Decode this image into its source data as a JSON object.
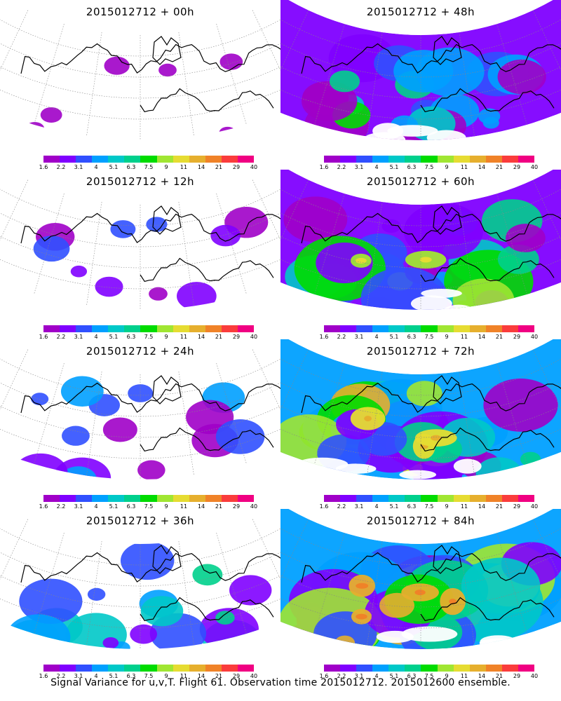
{
  "colorbar": {
    "labels": [
      "1.6",
      "2.2",
      "3.1",
      "4",
      "5.1",
      "6.3",
      "7.5",
      "9",
      "11",
      "14",
      "21",
      "29",
      "40"
    ],
    "colors": [
      "#a000c8",
      "#8000ff",
      "#3050ff",
      "#00a0ff",
      "#00c8c8",
      "#00d08c",
      "#00dc00",
      "#a0e632",
      "#e6dc32",
      "#e6af2d",
      "#f08228",
      "#fa3c3c",
      "#f00082"
    ]
  },
  "panels": [
    {
      "title": "2015012712 + 00h",
      "level": 0
    },
    {
      "title": "2015012712 + 48h",
      "level": 4
    },
    {
      "title": "2015012712 + 12h",
      "level": 1
    },
    {
      "title": "2015012712 + 60h",
      "level": 5
    },
    {
      "title": "2015012712 + 24h",
      "level": 2
    },
    {
      "title": "2015012712 + 72h",
      "level": 6
    },
    {
      "title": "2015012712 + 36h",
      "level": 3
    },
    {
      "title": "2015012712 + 84h",
      "level": 7
    }
  ],
  "caption": "Signal Variance for u,v,T. Flight 61. Observation time 2015012712. 2015012600 ensemble."
}
